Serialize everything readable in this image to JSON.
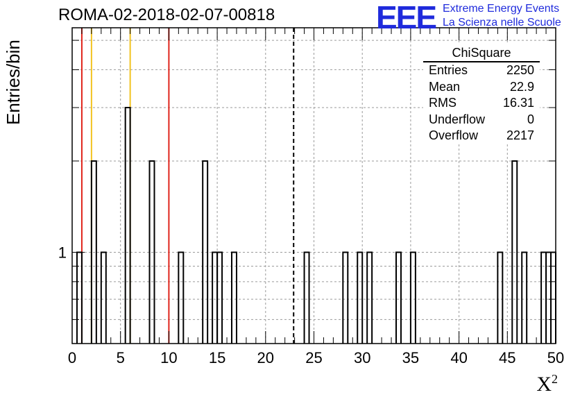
{
  "header": {
    "title": "ROMA-02-2018-02-07-00818",
    "ylabel": "Entries/bin",
    "xlabel_base": "X",
    "xlabel_sup": "2"
  },
  "logo": {
    "mark": "EEE",
    "line1": "Extreme Energy Events",
    "line2": "La Scienza nelle Scuole"
  },
  "stats": {
    "title": "ChiSquare",
    "rows": [
      {
        "key": "Entries",
        "value": "2250"
      },
      {
        "key": "Mean",
        "value": "22.9"
      },
      {
        "key": "RMS",
        "value": "16.31"
      },
      {
        "key": "Underflow",
        "value": "0"
      },
      {
        "key": "Overflow",
        "value": "2217"
      }
    ]
  },
  "chart_data": {
    "type": "bar",
    "style": "step-histogram",
    "title": "ROMA-02-2018-02-07-00818",
    "xlabel": "X²",
    "ylabel": "Entries/bin",
    "xlim": [
      0,
      50
    ],
    "ylim": [
      0.5,
      5.5
    ],
    "yscale": "log",
    "grid": true,
    "bin_width": 0.5,
    "x_ticks": [
      0,
      5,
      10,
      15,
      20,
      25,
      30,
      35,
      40,
      45,
      50
    ],
    "y_tick_labels": [
      {
        "value": 1,
        "label": "1"
      }
    ],
    "bins": [
      {
        "x": 0.5,
        "y": 1
      },
      {
        "x": 2.0,
        "y": 2
      },
      {
        "x": 3.0,
        "y": 1
      },
      {
        "x": 5.5,
        "y": 3
      },
      {
        "x": 8.0,
        "y": 2
      },
      {
        "x": 11.0,
        "y": 1
      },
      {
        "x": 13.5,
        "y": 2
      },
      {
        "x": 14.5,
        "y": 1
      },
      {
        "x": 15.0,
        "y": 1
      },
      {
        "x": 16.5,
        "y": 1
      },
      {
        "x": 24.0,
        "y": 1
      },
      {
        "x": 28.0,
        "y": 1
      },
      {
        "x": 29.5,
        "y": 1
      },
      {
        "x": 30.5,
        "y": 1
      },
      {
        "x": 33.5,
        "y": 1
      },
      {
        "x": 35.0,
        "y": 1
      },
      {
        "x": 44.0,
        "y": 1
      },
      {
        "x": 45.5,
        "y": 2
      },
      {
        "x": 46.5,
        "y": 1
      },
      {
        "x": 48.5,
        "y": 1
      },
      {
        "x": 49.0,
        "y": 1
      },
      {
        "x": 49.5,
        "y": 1
      }
    ],
    "vertical_lines": [
      {
        "x": 1,
        "color": "#e0241b",
        "style": "solid"
      },
      {
        "x": 2,
        "color": "#f2c320",
        "style": "solid"
      },
      {
        "x": 6,
        "color": "#f2c320",
        "style": "solid"
      },
      {
        "x": 10,
        "color": "#e0241b",
        "style": "solid"
      },
      {
        "x": 22.9,
        "color": "#000000",
        "style": "dashed"
      }
    ]
  }
}
